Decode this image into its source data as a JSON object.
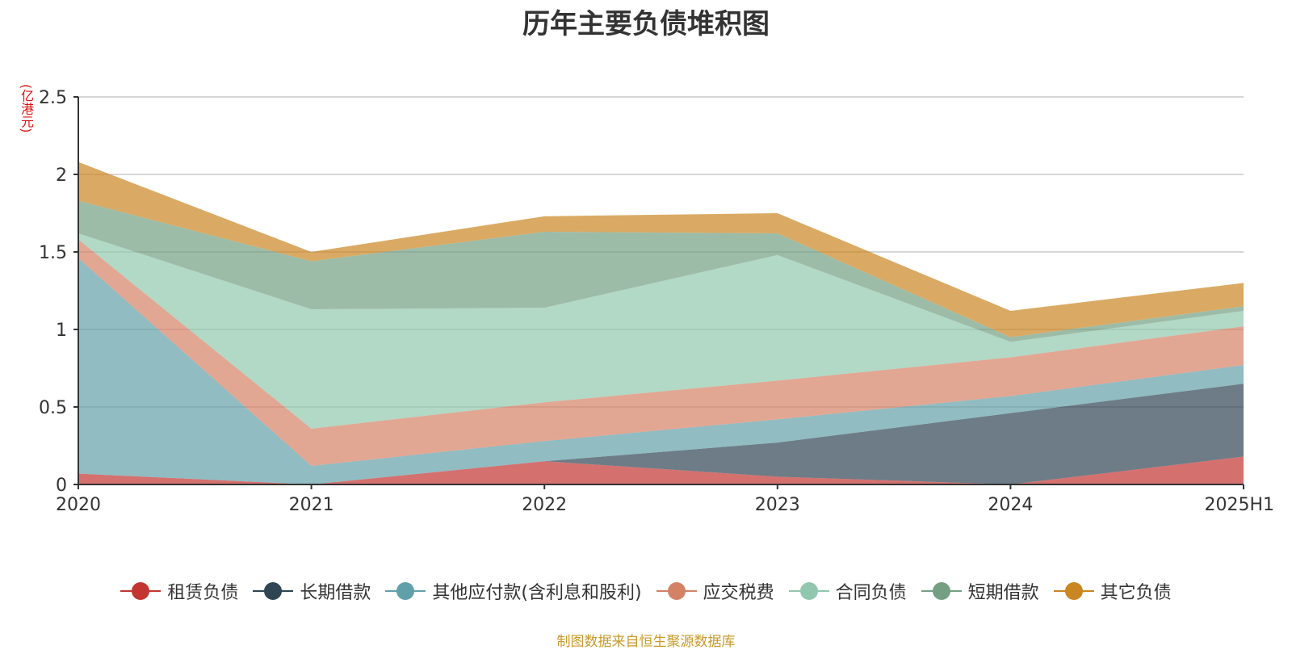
{
  "chart_data": {
    "type": "area",
    "stacked": true,
    "title": "历年主要负债堆积图",
    "ylabel": "(亿港元)",
    "xlabel": "",
    "categories": [
      "2020",
      "2021",
      "2022",
      "2023",
      "2024",
      "2025H1"
    ],
    "ylim": [
      0,
      2.5
    ],
    "yticks": [
      0,
      0.5,
      1,
      1.5,
      2,
      2.5
    ],
    "ytick_labels": [
      "0",
      "0.5",
      "1",
      "1.5",
      "2",
      "2.5"
    ],
    "grid": true,
    "legend_position": "bottom",
    "series": [
      {
        "name": "租赁负债",
        "color": "#c23531",
        "values": [
          0.07,
          0.0,
          0.15,
          0.05,
          0.0,
          0.18
        ]
      },
      {
        "name": "长期借款",
        "color": "#2f4554",
        "values": [
          0.0,
          0.0,
          0.0,
          0.22,
          0.46,
          0.47
        ]
      },
      {
        "name": "其他应付款(含利息和股利)",
        "color": "#61a0a8",
        "values": [
          1.39,
          0.12,
          0.13,
          0.15,
          0.11,
          0.12
        ]
      },
      {
        "name": "应交税费",
        "color": "#d48265",
        "values": [
          0.12,
          0.24,
          0.25,
          0.25,
          0.25,
          0.25
        ]
      },
      {
        "name": "合同负债",
        "color": "#91c7ae",
        "values": [
          0.04,
          0.77,
          0.61,
          0.81,
          0.1,
          0.1
        ]
      },
      {
        "name": "短期借款",
        "color": "#749f83",
        "values": [
          0.21,
          0.31,
          0.49,
          0.14,
          0.03,
          0.03
        ]
      },
      {
        "name": "其它负债",
        "color": "#ca8622",
        "values": [
          0.25,
          0.06,
          0.1,
          0.13,
          0.17,
          0.15
        ]
      }
    ]
  },
  "source_note": "制图数据来自恒生聚源数据库"
}
